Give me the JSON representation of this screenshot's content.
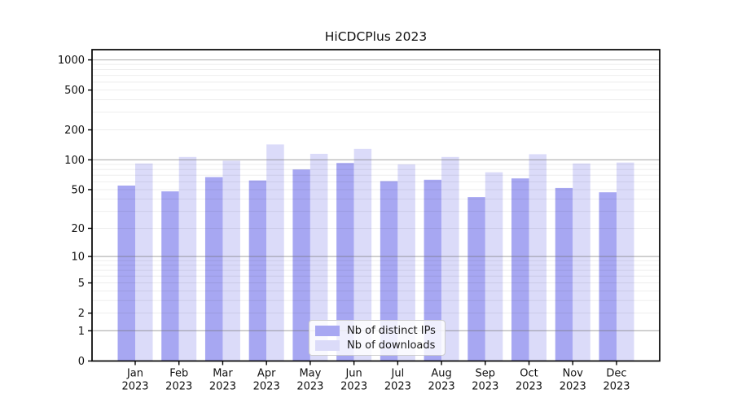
{
  "chart_data": {
    "type": "bar",
    "title": "HiCDCPlus 2023",
    "categories": [
      "Jan",
      "Feb",
      "Mar",
      "Apr",
      "May",
      "Jun",
      "Jul",
      "Aug",
      "Sep",
      "Oct",
      "Nov",
      "Dec"
    ],
    "category_year": "2023",
    "series": [
      {
        "name": "Nb of distinct IPs",
        "color": "#a7a7f2",
        "values": [
          55,
          48,
          67,
          62,
          80,
          93,
          61,
          63,
          42,
          65,
          52,
          47
        ]
      },
      {
        "name": "Nb of downloads",
        "color": "#dbdbf9",
        "values": [
          92,
          107,
          98,
          143,
          115,
          129,
          90,
          107,
          75,
          114,
          92,
          94
        ]
      }
    ],
    "yscale": "log1p",
    "ylim": [
      0,
      1265
    ],
    "y_ticks": [
      0,
      1,
      2,
      5,
      10,
      20,
      50,
      100,
      200,
      500,
      1000
    ],
    "grid": true,
    "legend_position": "lower center",
    "colors": {
      "spine": "#000000",
      "major_grid": "#9a9a9a",
      "minor_grid": "#e9e9e9",
      "tick_label": "#111111"
    }
  }
}
